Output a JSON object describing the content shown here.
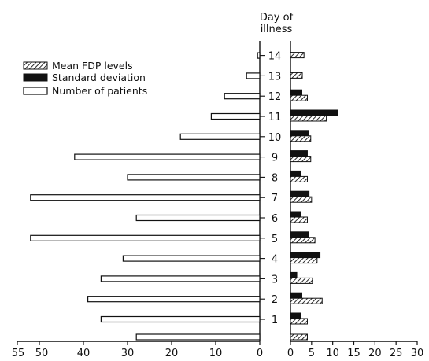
{
  "chart_data": {
    "type": "bar",
    "orientation": "horizontal",
    "title": "",
    "category_axis_title_line1": "Day of",
    "category_axis_title_line2": "illness",
    "categories": [
      "1",
      "2",
      "3",
      "4",
      "5",
      "6",
      "7",
      "8",
      "9",
      "10",
      "11",
      "12",
      "13",
      "14"
    ],
    "left_panel": {
      "xlim": [
        0,
        55
      ],
      "tick_labels": [
        "55",
        "50",
        "40",
        "30",
        "20",
        "10",
        "0"
      ],
      "tick_values": [
        55,
        50,
        40,
        30,
        20,
        10,
        0
      ],
      "direction": "right-to-left",
      "series": [
        {
          "name": "Number of patients",
          "style": "open",
          "values": [
            36,
            39,
            36,
            31,
            52,
            28,
            52,
            30,
            42,
            18,
            11,
            8,
            3,
            0.5
          ]
        }
      ],
      "extra_bar_below_day1": 28
    },
    "right_panel": {
      "xlim": [
        0,
        30
      ],
      "tick_labels": [
        "0",
        "5",
        "10",
        "15",
        "20",
        "25",
        "30"
      ],
      "tick_values": [
        0,
        5,
        10,
        15,
        20,
        25,
        30
      ],
      "direction": "left-to-right",
      "series": [
        {
          "name": "Mean FDP levels",
          "style": "hatched",
          "values": [
            4,
            7.5,
            5.2,
            6.3,
            5.8,
            4,
            5,
            4,
            4.8,
            4.8,
            8.5,
            4,
            2.8,
            3.2
          ]
        },
        {
          "name": "Standard deviation",
          "style": "solid",
          "values": [
            2.5,
            2.7,
            1.5,
            7,
            4.2,
            2.5,
            4.4,
            2.5,
            4,
            4.3,
            11.2,
            2.7,
            0,
            0
          ]
        }
      ],
      "extra_hatched_below_day1": 4
    },
    "legend": {
      "placement": "top-left",
      "entries": [
        "Mean FDP levels",
        "Standard deviation",
        "Number of patients"
      ]
    },
    "grid": false,
    "colors": {
      "ink": "#111111",
      "background": "#ffffff"
    }
  }
}
